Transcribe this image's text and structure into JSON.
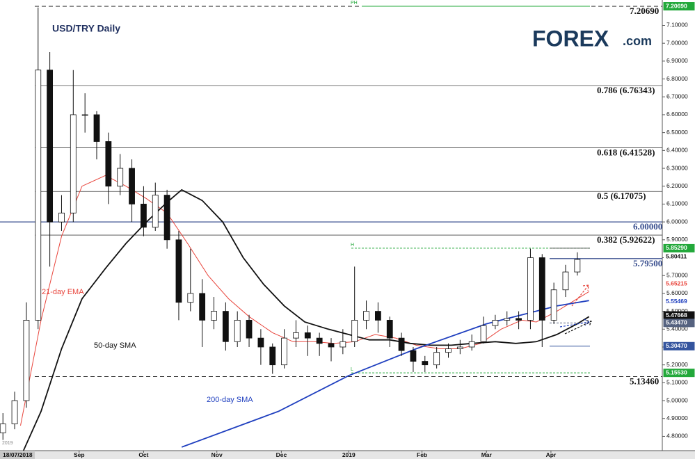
{
  "chart_data": {
    "type": "candlestick",
    "title": "USD/TRY Daily",
    "logo": {
      "main": "FOREX",
      "suffix": ".com"
    },
    "xlim": [
      -1,
      225
    ],
    "ylim": [
      4.72,
      7.242
    ],
    "xticks": [
      {
        "value": 5,
        "label": "18/07/2018"
      },
      {
        "value": 26,
        "label": "Sep"
      },
      {
        "value": 48,
        "label": "Oct"
      },
      {
        "value": 73,
        "label": "Nov"
      },
      {
        "value": 95,
        "label": "Dec"
      },
      {
        "value": 118,
        "label": "2019"
      },
      {
        "value": 143,
        "label": "Feb"
      },
      {
        "value": 165,
        "label": "Mar"
      },
      {
        "value": 187,
        "label": "Apr"
      }
    ],
    "yticks": [
      {
        "value": 4.8,
        "label": "4.80000"
      },
      {
        "value": 4.9,
        "label": "4.90000"
      },
      {
        "value": 5.0,
        "label": "5.00000"
      },
      {
        "value": 5.1,
        "label": "5.10000"
      },
      {
        "value": 5.2,
        "label": "5.20000"
      },
      {
        "value": 5.3,
        "label": "5.30000"
      },
      {
        "value": 5.4,
        "label": "5.40000"
      },
      {
        "value": 5.5,
        "label": "5.50000"
      },
      {
        "value": 5.6,
        "label": "5.60000"
      },
      {
        "value": 5.7,
        "label": "5.70000"
      },
      {
        "value": 5.8,
        "label": "5.80000"
      },
      {
        "value": 5.9,
        "label": "5.90000"
      },
      {
        "value": 6.0,
        "label": "6.00000"
      },
      {
        "value": 6.1,
        "label": "6.10000"
      },
      {
        "value": 6.2,
        "label": "6.20000"
      },
      {
        "value": 6.3,
        "label": "6.30000"
      },
      {
        "value": 6.4,
        "label": "6.40000"
      },
      {
        "value": 6.5,
        "label": "6.50000"
      },
      {
        "value": 6.6,
        "label": "6.60000"
      },
      {
        "value": 6.7,
        "label": "6.70000"
      },
      {
        "value": 6.8,
        "label": "6.80000"
      },
      {
        "value": 6.9,
        "label": "6.90000"
      },
      {
        "value": 7.0,
        "label": "7.00000"
      },
      {
        "value": 7.1,
        "label": "7.10000"
      }
    ],
    "x": [
      0,
      4,
      8,
      12,
      16,
      20,
      24,
      28,
      32,
      36,
      40,
      44,
      48,
      52,
      56,
      60,
      64,
      68,
      72,
      76,
      80,
      84,
      88,
      92,
      96,
      100,
      104,
      108,
      112,
      116,
      120,
      124,
      128,
      132,
      136,
      140,
      144,
      148,
      152,
      156,
      160,
      164,
      168,
      172,
      176,
      180,
      184,
      188,
      192,
      196
    ],
    "open": [
      4.82,
      4.87,
      5.0,
      5.45,
      6.85,
      6.0,
      6.05,
      6.6,
      6.6,
      6.45,
      6.2,
      6.3,
      6.1,
      5.97,
      6.15,
      5.9,
      5.55,
      5.6,
      5.45,
      5.5,
      5.33,
      5.45,
      5.35,
      5.3,
      5.2,
      5.35,
      5.38,
      5.35,
      5.32,
      5.3,
      5.33,
      5.45,
      5.5,
      5.45,
      5.35,
      5.28,
      5.22,
      5.2,
      5.27,
      5.29,
      5.3,
      5.33,
      5.42,
      5.45,
      5.46,
      5.45,
      5.8,
      5.45,
      5.62,
      5.72
    ],
    "high": [
      4.93,
      5.05,
      5.55,
      7.2,
      6.95,
      6.15,
      6.85,
      6.72,
      6.62,
      6.5,
      6.38,
      6.35,
      6.2,
      6.22,
      6.18,
      5.95,
      5.85,
      5.68,
      5.58,
      5.55,
      5.5,
      5.48,
      5.4,
      5.32,
      5.4,
      5.45,
      5.42,
      5.38,
      5.35,
      5.4,
      5.75,
      5.56,
      5.55,
      5.47,
      5.38,
      5.3,
      5.25,
      5.3,
      5.32,
      5.34,
      5.37,
      5.47,
      5.48,
      5.5,
      5.5,
      5.85,
      5.82,
      5.66,
      5.76,
      5.83
    ],
    "low": [
      4.78,
      4.84,
      4.96,
      5.4,
      5.75,
      5.95,
      6.0,
      6.5,
      6.35,
      6.1,
      6.15,
      6.0,
      5.92,
      5.95,
      5.85,
      5.45,
      5.5,
      5.3,
      5.4,
      5.28,
      5.3,
      5.3,
      5.2,
      5.15,
      5.18,
      5.3,
      5.25,
      5.25,
      5.22,
      5.26,
      5.3,
      5.4,
      5.38,
      5.3,
      5.25,
      5.16,
      5.16,
      5.18,
      5.24,
      5.26,
      5.28,
      5.32,
      5.4,
      5.42,
      5.4,
      5.4,
      5.3,
      5.43,
      5.58,
      5.7
    ],
    "close": [
      4.87,
      5.0,
      5.45,
      6.85,
      6.0,
      6.05,
      6.6,
      6.6,
      6.45,
      6.2,
      6.3,
      6.1,
      5.97,
      6.15,
      5.9,
      5.55,
      5.6,
      5.45,
      5.5,
      5.33,
      5.45,
      5.35,
      5.3,
      5.2,
      5.35,
      5.38,
      5.35,
      5.32,
      5.3,
      5.33,
      5.45,
      5.5,
      5.45,
      5.35,
      5.28,
      5.22,
      5.2,
      5.27,
      5.29,
      5.3,
      5.33,
      5.42,
      5.45,
      5.46,
      5.45,
      5.8,
      5.45,
      5.62,
      5.72,
      5.79
    ],
    "series": [
      {
        "name": "21-day EMA",
        "color": "#e8453c",
        "x": [
          6,
          13,
          20,
          27,
          35,
          42,
          49,
          56,
          63,
          70,
          77,
          84,
          92,
          99,
          106,
          113,
          120,
          127,
          134,
          141,
          149,
          156,
          163,
          170,
          177,
          182,
          189,
          196,
          200
        ],
        "values": [
          4.86,
          5.45,
          5.92,
          6.2,
          6.26,
          6.2,
          6.13,
          6.05,
          5.88,
          5.7,
          5.57,
          5.47,
          5.38,
          5.33,
          5.33,
          5.32,
          5.33,
          5.37,
          5.35,
          5.31,
          5.29,
          5.29,
          5.32,
          5.4,
          5.45,
          5.44,
          5.5,
          5.57,
          5.61
        ]
      },
      {
        "name": "50-day SMA",
        "color": "#111111",
        "x": [
          7,
          13,
          20,
          27,
          35,
          42,
          49,
          56,
          61,
          68,
          75,
          82,
          89,
          96,
          103,
          111,
          118,
          125,
          132,
          139,
          146,
          153,
          160,
          168,
          175,
          182,
          189,
          196,
          200
        ],
        "values": [
          4.72,
          4.94,
          5.29,
          5.57,
          5.74,
          5.88,
          6.0,
          6.11,
          6.18,
          6.12,
          6.0,
          5.8,
          5.65,
          5.53,
          5.44,
          5.4,
          5.37,
          5.34,
          5.34,
          5.32,
          5.31,
          5.31,
          5.32,
          5.33,
          5.32,
          5.33,
          5.37,
          5.43,
          5.47
        ]
      },
      {
        "name": "200-day SMA",
        "color": "#1f3fbf",
        "x": [
          61,
          94,
          118,
          141,
          165,
          189,
          200
        ],
        "values": [
          4.74,
          4.94,
          5.14,
          5.29,
          5.43,
          5.53,
          5.56
        ]
      }
    ],
    "fib_levels": [
      {
        "label": "0.786 (6.76343)",
        "value": 6.76343
      },
      {
        "label": "0.618 (6.41528)",
        "value": 6.41528
      },
      {
        "label": "0.5 (6.17075)",
        "value": 6.17075
      },
      {
        "label": "0.382 (5.92622)",
        "value": 5.92622
      }
    ],
    "levels": [
      {
        "label": "7.20690",
        "value": 7.2069,
        "color": "#111111",
        "style": "dashed"
      },
      {
        "label": "5.13460",
        "value": 5.1346,
        "color": "#111111",
        "style": "dashed"
      },
      {
        "label": "6.00000",
        "value": 6.0,
        "color": "#3a4f8f",
        "style": "solid"
      },
      {
        "label": "5.79500",
        "value": 5.795,
        "color": "#3a4f8f",
        "style": "short"
      }
    ],
    "markers": [
      {
        "label": "PH",
        "value": 7.2069
      },
      {
        "label": "H",
        "value": 5.8529
      },
      {
        "label": "L",
        "value": 5.1553
      }
    ],
    "price_tags": [
      {
        "label": "7.20690",
        "value": 7.2069,
        "color": "#ffffff",
        "fill": "#22a83a"
      },
      {
        "label": "5.85290",
        "value": 5.8529,
        "color": "#ffffff",
        "fill": "#22a83a"
      },
      {
        "label": "5.80411",
        "value": 5.80411,
        "color": "#111111",
        "fill": "#ffffff"
      },
      {
        "label": "5.65215",
        "value": 5.65215,
        "color": "#e8453c",
        "fill": "#ffffff"
      },
      {
        "label": "5.55469",
        "value": 5.55469,
        "color": "#1f3fbf",
        "fill": "#ffffff"
      },
      {
        "label": "5.47668",
        "value": 5.47668,
        "color": "#ffffff",
        "fill": "#111111"
      },
      {
        "label": "5.43470",
        "value": 5.4347,
        "color": "#ffffff",
        "fill": "#55627f"
      },
      {
        "label": "5.30470",
        "value": 5.3047,
        "color": "#ffffff",
        "fill": "#34549e"
      },
      {
        "label": "5.15530",
        "value": 5.1553,
        "color": "#ffffff",
        "fill": "#22a83a"
      }
    ],
    "footnote": "2019"
  }
}
